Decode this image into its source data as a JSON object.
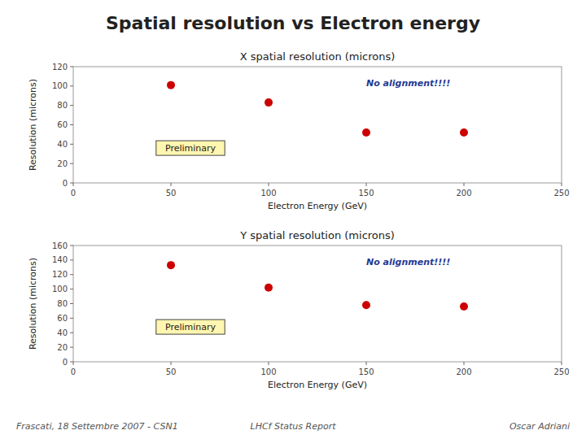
{
  "title": "Spatial resolution vs Electron energy",
  "annotations": [
    "Frascati, 18 Settembre 2007 - CSN1",
    "LHCf Status Report",
    "Oscar Adriani"
  ],
  "chart_data": [
    {
      "type": "scatter",
      "title": "X spatial resolution (microns)",
      "x_label": "Electron Energy (GeV)",
      "y_label": "Resolution (microns)",
      "x": [
        50,
        100,
        150,
        200
      ],
      "values": [
        101,
        83,
        52,
        52
      ],
      "xlim": [
        0,
        250
      ],
      "ylim": [
        0,
        120
      ],
      "xticks": [
        0,
        50,
        100,
        150,
        200,
        250
      ],
      "yticks": [
        0,
        20,
        40,
        60,
        80,
        100,
        120
      ],
      "color": "#CC0000",
      "grid": false,
      "annotations": [
        "No alignment!!!!",
        "Preliminary"
      ]
    },
    {
      "type": "scatter",
      "title": "Y spatial resolution (microns)",
      "x_label": "Electron Energy (GeV)",
      "y_label": "Resolution (microns)",
      "x": [
        50,
        100,
        150,
        200
      ],
      "values": [
        133,
        102,
        78,
        76
      ],
      "xlim": [
        0,
        250
      ],
      "ylim": [
        0,
        160
      ],
      "xticks": [
        0,
        50,
        100,
        150,
        200,
        250
      ],
      "yticks": [
        0,
        20,
        40,
        60,
        80,
        100,
        120,
        140,
        160
      ],
      "color": "#CC0000",
      "grid": false,
      "annotations": [
        "No alignment!!!!",
        "Preliminary"
      ]
    }
  ]
}
